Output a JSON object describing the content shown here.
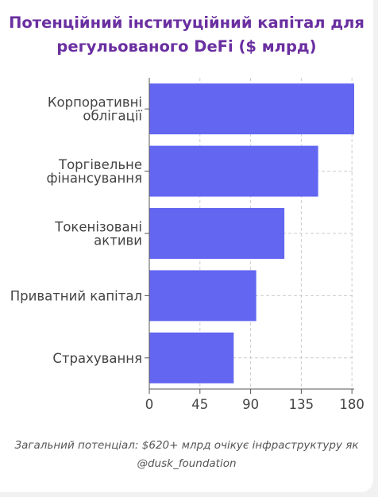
{
  "chart_data": {
    "type": "bar",
    "orientation": "horizontal",
    "title": "Потенційний інституційний капітал для регульованого DeFi ($ млрд)",
    "categories": [
      [
        "Корпоративні",
        "облігації"
      ],
      [
        "Торгівельне",
        "фінансування"
      ],
      [
        "Токенізовані",
        "активи"
      ],
      [
        "Приватний капітал"
      ],
      [
        "Страхування"
      ]
    ],
    "values": [
      182,
      150,
      120,
      95,
      75
    ],
    "xlim": [
      0,
      182
    ],
    "xticks": [
      "0",
      "45",
      "90",
      "135",
      "180"
    ],
    "xtick_values": [
      0,
      45,
      90,
      135,
      180
    ],
    "grid": true,
    "bar_color": "#6366f1",
    "title_color": "#6a2fa0"
  },
  "caption": {
    "line1": "Загальний потенціал: $620+ млрд очікує інфраструктуру як",
    "line2": "@dusk_foundation"
  }
}
